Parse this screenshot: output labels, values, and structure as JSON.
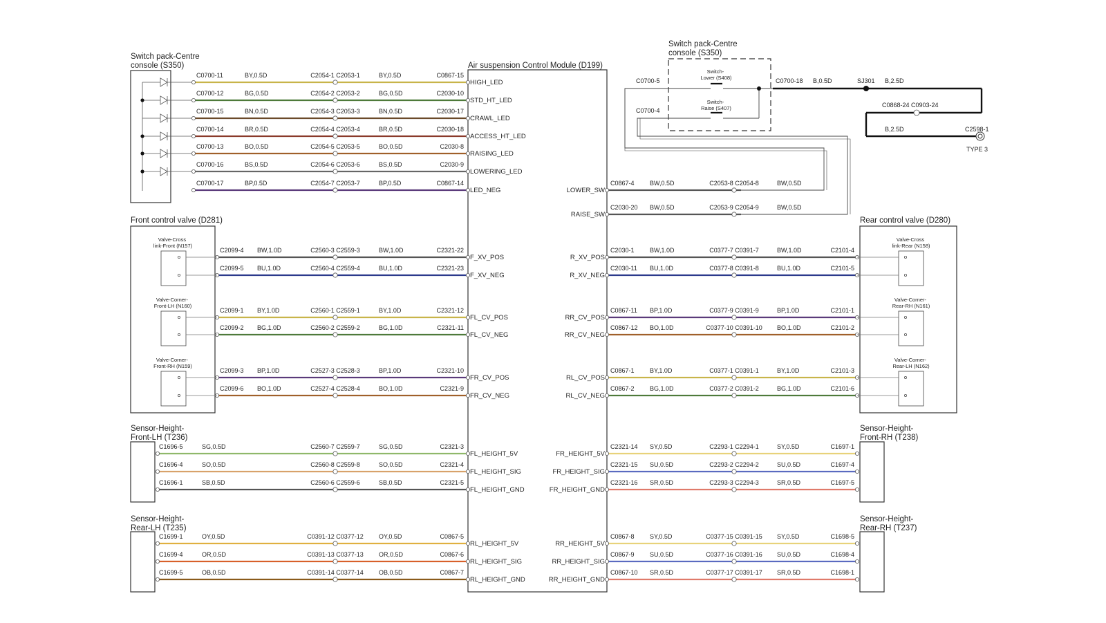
{
  "module": {
    "title": "Air suspension Control Module (D199)"
  },
  "components": [
    {
      "id": "sw_left",
      "lines": [
        "Switch pack-Centre",
        "console (S350)"
      ]
    },
    {
      "id": "sw_right",
      "lines": [
        "Switch pack-Centre",
        "console (S350)"
      ]
    },
    {
      "id": "fcv",
      "lines": [
        "Front control valve (D281)"
      ]
    },
    {
      "id": "rcv",
      "lines": [
        "Rear control valve (D280)"
      ]
    },
    {
      "id": "shflh",
      "lines": [
        "Sensor-Height-",
        "Front-LH (T236)"
      ]
    },
    {
      "id": "shfrh",
      "lines": [
        "Sensor-Height-",
        "Front-RH (T238)"
      ]
    },
    {
      "id": "shrlh",
      "lines": [
        "Sensor-Height-",
        "Rear-LH (T235)"
      ]
    },
    {
      "id": "shrrh",
      "lines": [
        "Sensor-Height-",
        "Rear-RH (T237)"
      ]
    }
  ],
  "sub_labels": [
    {
      "id": "n157",
      "lines": [
        "Valve-Cross",
        "link-Front (N157)"
      ]
    },
    {
      "id": "n160",
      "lines": [
        "Valve-Corner-",
        "Front-LH (N160)"
      ]
    },
    {
      "id": "n159",
      "lines": [
        "Valve-Corner-",
        "Front-RH (N159)"
      ]
    },
    {
      "id": "n158",
      "lines": [
        "Valve-Cross",
        "link-Rear (N158)"
      ]
    },
    {
      "id": "n161",
      "lines": [
        "Valve-Corner-",
        "Rear-RH (N161)"
      ]
    },
    {
      "id": "n162",
      "lines": [
        "Valve-Corner-",
        "Rear-LH (N162)"
      ]
    },
    {
      "id": "s408",
      "lines": [
        "Switch-",
        "Lower (S408)"
      ]
    },
    {
      "id": "s407",
      "lines": [
        "Switch-",
        "Raise (S407)"
      ]
    }
  ],
  "left_wires": [
    {
      "pin": "HIGH_LED",
      "c1": "C0700-11",
      "w1": "BY,0.5D",
      "ip": "C2054-1 C2053-1",
      "w2": "BY,0.5D",
      "c2": "C0867-15",
      "color": "#c8b44a"
    },
    {
      "pin": "STD_HT_LED",
      "c1": "C0700-12",
      "w1": "BG,0.5D",
      "ip": "C2054-2 C2053-2",
      "w2": "BG,0.5D",
      "c2": "C2030-10",
      "color": "#4e7a3a"
    },
    {
      "pin": "CRAWL_LED",
      "c1": "C0700-15",
      "w1": "BN,0.5D",
      "ip": "C2054-3 C2053-3",
      "w2": "BN,0.5D",
      "c2": "C2030-17",
      "color": "#6b4a2a"
    },
    {
      "pin": "ACCESS_HT_LED",
      "c1": "C0700-14",
      "w1": "BR,0.5D",
      "ip": "C2054-4 C2053-4",
      "w2": "BR,0.5D",
      "c2": "C2030-18",
      "color": "#8a3a2a"
    },
    {
      "pin": "RAISING_LED",
      "c1": "C0700-13",
      "w1": "BO,0.5D",
      "ip": "C2054-5 C2053-5",
      "w2": "BO,0.5D",
      "c2": "C2030-8",
      "color": "#a0602a"
    },
    {
      "pin": "LOWERING_LED",
      "c1": "C0700-16",
      "w1": "BS,0.5D",
      "ip": "C2054-6 C2053-6",
      "w2": "BS,0.5D",
      "c2": "C2030-9",
      "color": "#666666"
    },
    {
      "pin": "LED_NEG",
      "c1": "C0700-17",
      "w1": "BP,0.5D",
      "ip": "C2054-7 C2053-7",
      "w2": "BP,0.5D",
      "c2": "C0867-14",
      "color": "#5a3a7a"
    },
    {
      "pin": "F_XV_POS",
      "c1": "C2099-4",
      "w1": "BW,1.0D",
      "ip": "C2560-3 C2559-3",
      "w2": "BW,1.0D",
      "c2": "C2321-22",
      "color": "#555555"
    },
    {
      "pin": "F_XV_NEG",
      "c1": "C2099-5",
      "w1": "BU,1.0D",
      "ip": "C2560-4 C2559-4",
      "w2": "BU,1.0D",
      "c2": "C2321-23",
      "color": "#2c3a8c"
    },
    {
      "pin": "FL_CV_POS",
      "c1": "C2099-1",
      "w1": "BY,1.0D",
      "ip": "C2560-1 C2559-1",
      "w2": "BY,1.0D",
      "c2": "C2321-12",
      "color": "#c8b44a"
    },
    {
      "pin": "FL_CV_NEG",
      "c1": "C2099-2",
      "w1": "BG,1.0D",
      "ip": "C2560-2 C2559-2",
      "w2": "BG,1.0D",
      "c2": "C2321-11",
      "color": "#4e7a3a"
    },
    {
      "pin": "FR_CV_POS",
      "c1": "C2099-3",
      "w1": "BP,1.0D",
      "ip": "C2527-3 C2528-3",
      "w2": "BP,1.0D",
      "c2": "C2321-10",
      "color": "#5a3a7a"
    },
    {
      "pin": "FR_CV_NEG",
      "c1": "C2099-6",
      "w1": "BO,1.0D",
      "ip": "C2527-4 C2528-4",
      "w2": "BO,1.0D",
      "c2": "C2321-9",
      "color": "#a0602a"
    },
    {
      "pin": "FL_HEIGHT_5V",
      "c1": "C1696-5",
      "w1": "SG,0.5D",
      "ip": "C2560-7 C2559-7",
      "w2": "SG,0.5D",
      "c2": "C2321-3",
      "color": "#8fb86a"
    },
    {
      "pin": "FL_HEIGHT_SIG",
      "c1": "C1696-4",
      "w1": "SO,0.5D",
      "ip": "C2560-8 C2559-8",
      "w2": "SO,0.5D",
      "c2": "C2321-4",
      "color": "#d8a26a"
    },
    {
      "pin": "FL_HEIGHT_GND",
      "c1": "C1696-1",
      "w1": "SB,0.5D",
      "ip": "C2560-6 C2559-6",
      "w2": "SB,0.5D",
      "c2": "C2321-5",
      "color": "#555555"
    },
    {
      "pin": "RL_HEIGHT_5V",
      "c1": "C1699-1",
      "w1": "OY,0.5D",
      "ip": "C0391-12 C0377-12",
      "w2": "OY,0.5D",
      "c2": "C0867-5",
      "color": "#e0b040"
    },
    {
      "pin": "RL_HEIGHT_SIG",
      "c1": "C1699-4",
      "w1": "OR,0.5D",
      "ip": "C0391-13 C0377-13",
      "w2": "OR,0.5D",
      "c2": "C0867-6",
      "color": "#d8602a"
    },
    {
      "pin": "RL_HEIGHT_GND",
      "c1": "C1699-5",
      "w1": "OB,0.5D",
      "ip": "C0391-14 C0377-14",
      "w2": "OB,0.5D",
      "c2": "C0867-7",
      "color": "#8a5a1a"
    }
  ],
  "right_wires": [
    {
      "pin": "LOWER_SW",
      "c1": "C0867-4",
      "w1": "BW,0.5D",
      "ip": "C2053-8 C2054-8",
      "w2": "BW,0.5D",
      "c2": "",
      "color": "#555555"
    },
    {
      "pin": "RAISE_SW",
      "c1": "C2030-20",
      "w1": "BW,0.5D",
      "ip": "C2053-9 C2054-9",
      "w2": "BW,0.5D",
      "c2": "",
      "color": "#555555"
    },
    {
      "pin": "R_XV_POS",
      "c1": "C2030-1",
      "w1": "BW,1.0D",
      "ip": "C0377-7 C0391-7",
      "w2": "BW,1.0D",
      "c2": "C2101-4",
      "color": "#555555"
    },
    {
      "pin": "R_XV_NEG",
      "c1": "C2030-11",
      "w1": "BU,1.0D",
      "ip": "C0377-8 C0391-8",
      "w2": "BU,1.0D",
      "c2": "C2101-5",
      "color": "#2c3a8c"
    },
    {
      "pin": "RR_CV_POS",
      "c1": "C0867-11",
      "w1": "BP,1.0D",
      "ip": "C0377-9 C0391-9",
      "w2": "BP,1.0D",
      "c2": "C2101-1",
      "color": "#5a3a7a"
    },
    {
      "pin": "RR_CV_NEG",
      "c1": "C0867-12",
      "w1": "BO,1.0D",
      "ip": "C0377-10 C0391-10",
      "w2": "BO,1.0D",
      "c2": "C2101-2",
      "color": "#a0602a"
    },
    {
      "pin": "RL_CV_POS",
      "c1": "C0867-1",
      "w1": "BY,1.0D",
      "ip": "C0377-1 C0391-1",
      "w2": "BY,1.0D",
      "c2": "C2101-3",
      "color": "#c8b44a"
    },
    {
      "pin": "RL_CV_NEG",
      "c1": "C0867-2",
      "w1": "BG,1.0D",
      "ip": "C0377-2 C0391-2",
      "w2": "BG,1.0D",
      "c2": "C2101-6",
      "color": "#4e7a3a"
    },
    {
      "pin": "FR_HEIGHT_5V",
      "c1": "C2321-14",
      "w1": "SY,0.5D",
      "ip": "C2293-1 C2294-1",
      "w2": "SY,0.5D",
      "c2": "C1697-1",
      "color": "#e8d27a"
    },
    {
      "pin": "FR_HEIGHT_SIG",
      "c1": "C2321-15",
      "w1": "SU,0.5D",
      "ip": "C2293-2 C2294-2",
      "w2": "SU,0.5D",
      "c2": "C1697-4",
      "color": "#5a6ac0"
    },
    {
      "pin": "FR_HEIGHT_GND",
      "c1": "C2321-16",
      "w1": "SR,0.5D",
      "ip": "C2293-3 C2294-3",
      "w2": "SR,0.5D",
      "c2": "C1697-5",
      "color": "#e07a6a"
    },
    {
      "pin": "RR_HEIGHT_5V",
      "c1": "C0867-8",
      "w1": "SY,0.5D",
      "ip": "C0377-15 C0391-15",
      "w2": "SY,0.5D",
      "c2": "C1698-5",
      "color": "#e8d27a"
    },
    {
      "pin": "RR_HEIGHT_SIG",
      "c1": "C0867-9",
      "w1": "SU,0.5D",
      "ip": "C0377-16 C0391-16",
      "w2": "SU,0.5D",
      "c2": "C1698-4",
      "color": "#5a6ac0"
    },
    {
      "pin": "RR_HEIGHT_GND",
      "c1": "C0867-10",
      "w1": "SR,0.5D",
      "ip": "C0377-17 C0391-17",
      "w2": "SR,0.5D",
      "c2": "C1698-1",
      "color": "#e07a6a"
    }
  ],
  "switch_area": {
    "c_lower": "C0700-5",
    "c_raise": "C0700-4",
    "c_common": "C0700-18",
    "w_common": "B,0.5D",
    "splice": "SJ301",
    "w_splice": "B,2.5D",
    "inline": "C0868-24 C0903-24",
    "w_ground": "B,2.5D",
    "ground_conn": "C2598-1",
    "ground_type": "TYPE 3"
  }
}
